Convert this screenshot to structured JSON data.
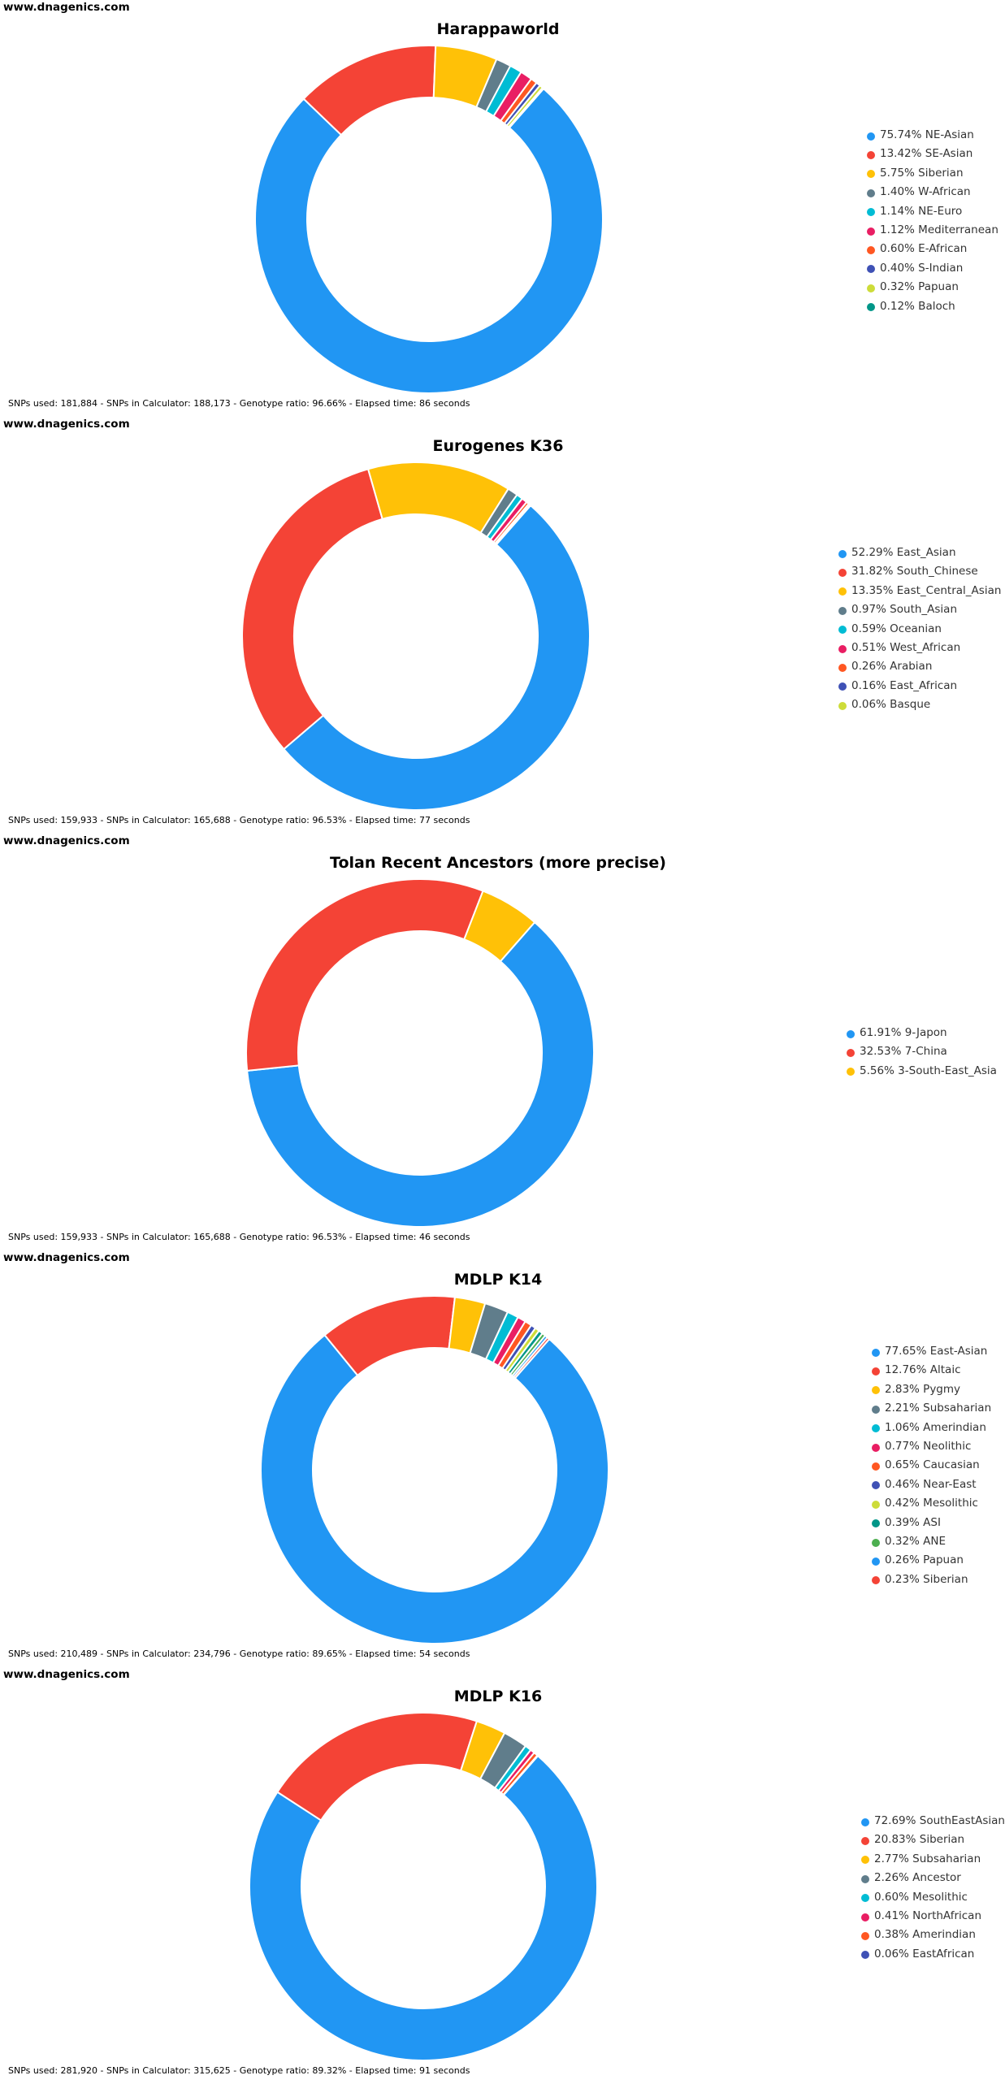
{
  "site_label": "www.dnagenics.com",
  "chart_data": [
    {
      "type": "pie",
      "title": "Harappaworld",
      "labels": [
        "75.74% NE-Asian",
        "13.42% SE-Asian",
        "5.75% Siberian",
        "1.40% W-African",
        "1.14% NE-Euro",
        "1.12% Mediterranean",
        "0.60% E-African",
        "0.40% S-Indian",
        "0.32% Papuan",
        "0.12% Baloch"
      ],
      "values": [
        75.74,
        13.42,
        5.75,
        1.4,
        1.14,
        1.12,
        0.6,
        0.4,
        0.32,
        0.12
      ],
      "colors": [
        "#2196f3",
        "#f44336",
        "#ffc107",
        "#607d8b",
        "#00bcd4",
        "#e91e63",
        "#ff5722",
        "#3f51b5",
        "#cddc39",
        "#009688"
      ],
      "legend_position": "right",
      "footer": "SNPs used: 181,884 - SNPs in Calculator: 188,173 - Genotype ratio: 96.66% - Elapsed time: 86 seconds"
    },
    {
      "type": "pie",
      "title": "Eurogenes K36",
      "labels": [
        "52.29% East_Asian",
        "31.82% South_Chinese",
        "13.35% East_Central_Asian",
        "0.97% South_Asian",
        "0.59% Oceanian",
        "0.51% West_African",
        "0.26% Arabian",
        "0.16% East_African",
        "0.06% Basque"
      ],
      "values": [
        52.29,
        31.82,
        13.35,
        0.97,
        0.59,
        0.51,
        0.26,
        0.16,
        0.06
      ],
      "colors": [
        "#2196f3",
        "#f44336",
        "#ffc107",
        "#607d8b",
        "#00bcd4",
        "#e91e63",
        "#ff5722",
        "#3f51b5",
        "#cddc39"
      ],
      "legend_position": "right",
      "footer": "SNPs used: 159,933 - SNPs in Calculator: 165,688 - Genotype ratio: 96.53% - Elapsed time: 77 seconds"
    },
    {
      "type": "pie",
      "title": "Tolan Recent Ancestors (more precise)",
      "labels": [
        "61.91% 9-Japon",
        "32.53% 7-China",
        "5.56% 3-South-East_Asia"
      ],
      "values": [
        61.91,
        32.53,
        5.56
      ],
      "colors": [
        "#2196f3",
        "#f44336",
        "#ffc107"
      ],
      "legend_position": "right",
      "footer": "SNPs used: 159,933 - SNPs in Calculator: 165,688 - Genotype ratio: 96.53% - Elapsed time: 46 seconds"
    },
    {
      "type": "pie",
      "title": "MDLP K14",
      "labels": [
        "77.65% East-Asian",
        "12.76% Altaic",
        "2.83% Pygmy",
        "2.21% Subsaharian",
        "1.06% Amerindian",
        "0.77% Neolithic",
        "0.65% Caucasian",
        "0.46% Near-East",
        "0.42% Mesolithic",
        "0.39% ASI",
        "0.32% ANE",
        "0.26% Papuan",
        "0.23% Siberian"
      ],
      "values": [
        77.65,
        12.76,
        2.83,
        2.21,
        1.06,
        0.77,
        0.65,
        0.46,
        0.42,
        0.39,
        0.32,
        0.26,
        0.23
      ],
      "colors": [
        "#2196f3",
        "#f44336",
        "#ffc107",
        "#607d8b",
        "#00bcd4",
        "#e91e63",
        "#ff5722",
        "#3f51b5",
        "#cddc39",
        "#009688",
        "#4caf50",
        "#2196f3",
        "#f44336"
      ],
      "legend_position": "right",
      "footer": "SNPs used: 210,489 - SNPs in Calculator: 234,796 - Genotype ratio: 89.65% - Elapsed time: 54 seconds"
    },
    {
      "type": "pie",
      "title": "MDLP K16",
      "labels": [
        "72.69% SouthEastAsian",
        "20.83% Siberian",
        "2.77% Subsaharian",
        "2.26% Ancestor",
        "0.60% Mesolithic",
        "0.41% NorthAfrican",
        "0.38% Amerindian",
        "0.06% EastAfrican"
      ],
      "values": [
        72.69,
        20.83,
        2.77,
        2.26,
        0.6,
        0.41,
        0.38,
        0.06
      ],
      "colors": [
        "#2196f3",
        "#f44336",
        "#ffc107",
        "#607d8b",
        "#00bcd4",
        "#e91e63",
        "#ff5722",
        "#3f51b5"
      ],
      "legend_position": "right",
      "footer": "SNPs used: 281,920 - SNPs in Calculator: 315,625 - Genotype ratio: 89.32% - Elapsed time: 91 seconds"
    }
  ]
}
